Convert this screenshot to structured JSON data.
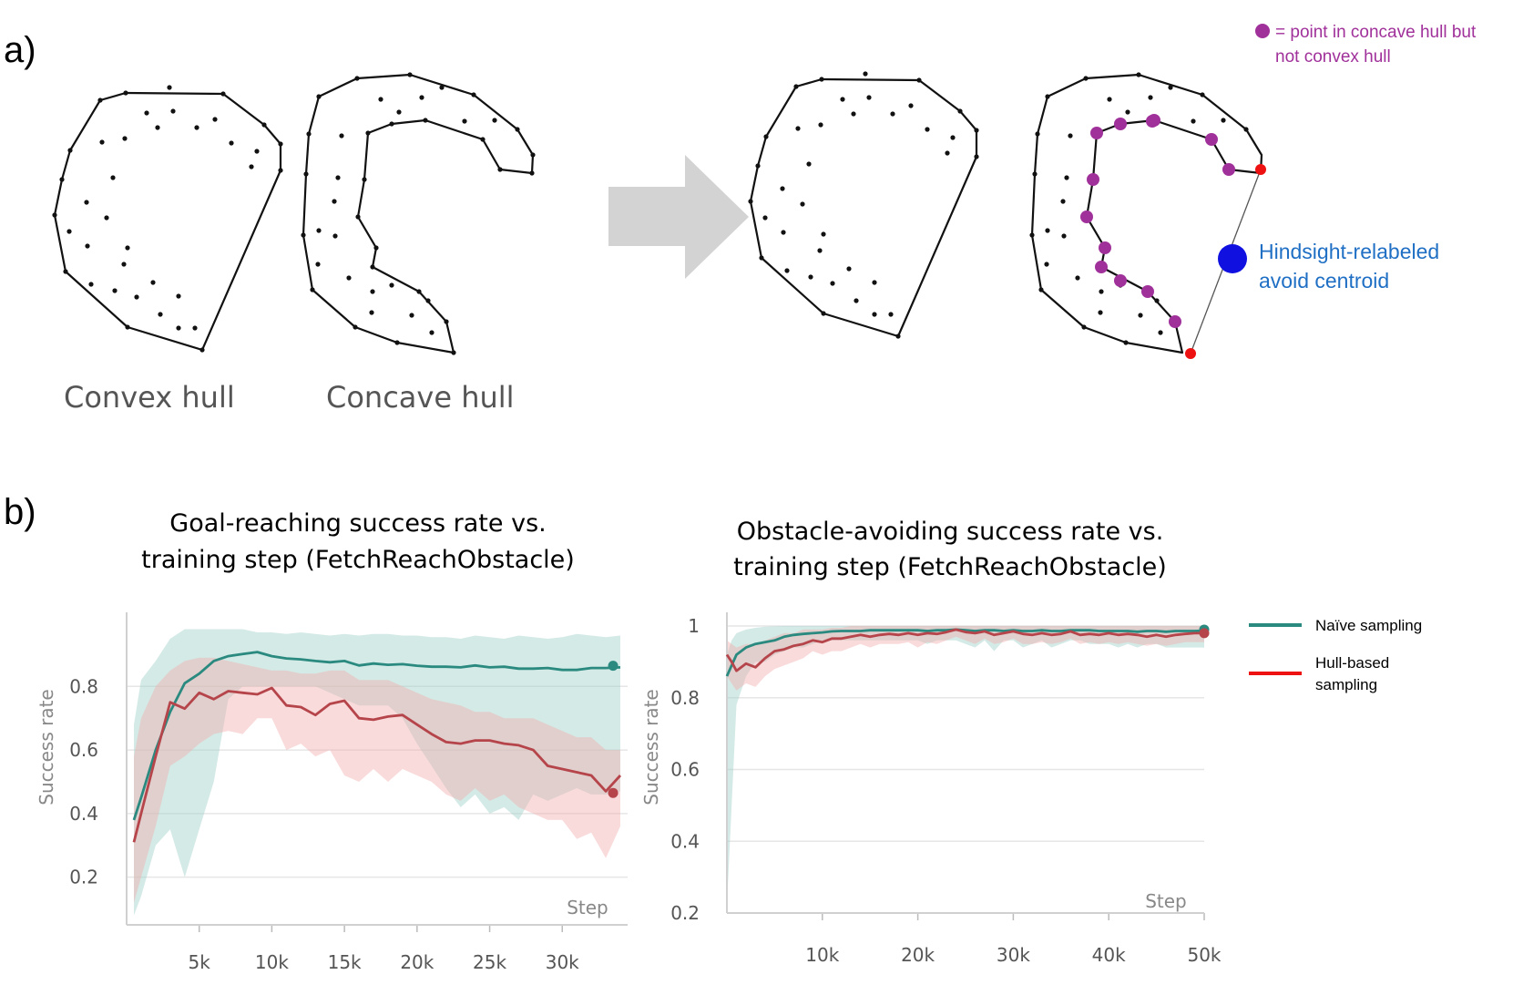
{
  "panel_a": {
    "label": "a)",
    "convex_label": "Convex hull",
    "concave_label": "Concave hull",
    "legend_text_line1": "= point in concave hull but",
    "legend_text_line2": "not convex hull",
    "centroid_line1": "Hindsight-relabeled",
    "centroid_line2": "avoid centroid",
    "colors": {
      "purple": "#a0309a",
      "red": "#ee1111",
      "blue": "#1010e0",
      "arrow": "#d3d3d3"
    }
  },
  "panel_b": {
    "label": "b)"
  },
  "legend": {
    "items": [
      {
        "label": "Naïve sampling",
        "color": "#2a8a80"
      },
      {
        "label_line1": "Hull-based",
        "label_line2": "sampling",
        "color": "#ee1111"
      }
    ]
  },
  "chart_data": [
    {
      "type": "line",
      "title_line1": "Goal-reaching success rate vs.",
      "title_line2": "training step (FetchReachObstacle)",
      "xlabel": "Step",
      "ylabel": "Success rate",
      "xlim": [
        0,
        34500
      ],
      "ylim": [
        0.05,
        0.99
      ],
      "xticks": [
        5000,
        10000,
        15000,
        20000,
        25000,
        30000
      ],
      "xtick_labels": [
        "5k",
        "10k",
        "15k",
        "20k",
        "25k",
        "30k"
      ],
      "yticks": [
        0.2,
        0.4,
        0.6,
        0.8
      ],
      "ytick_labels": [
        "0.2",
        "0.4",
        "0.6",
        "0.8"
      ],
      "grid": true,
      "x": [
        500,
        1000,
        2000,
        3000,
        4000,
        5000,
        6000,
        7000,
        8000,
        9000,
        10000,
        11000,
        12000,
        13000,
        14000,
        15000,
        16000,
        17000,
        18000,
        19000,
        20000,
        21000,
        22000,
        23000,
        24000,
        25000,
        26000,
        27000,
        28000,
        29000,
        30000,
        31000,
        32000,
        33000,
        34000
      ],
      "series": [
        {
          "name": "Naïve sampling",
          "color": "#2a8a80",
          "band_color": "#9fd0c8",
          "values": [
            0.38,
            0.45,
            0.6,
            0.72,
            0.81,
            0.84,
            0.88,
            0.895,
            0.902,
            0.908,
            0.895,
            0.888,
            0.885,
            0.88,
            0.876,
            0.88,
            0.866,
            0.872,
            0.868,
            0.87,
            0.865,
            0.862,
            0.862,
            0.86,
            0.866,
            0.86,
            0.862,
            0.856,
            0.856,
            0.858,
            0.852,
            0.852,
            0.858,
            0.858,
            0.86
          ],
          "upper": [
            0.68,
            0.82,
            0.88,
            0.95,
            0.98,
            0.98,
            0.98,
            0.98,
            0.98,
            0.97,
            0.97,
            0.965,
            0.97,
            0.965,
            0.96,
            0.965,
            0.96,
            0.965,
            0.965,
            0.96,
            0.96,
            0.955,
            0.955,
            0.95,
            0.96,
            0.955,
            0.95,
            0.96,
            0.955,
            0.95,
            0.955,
            0.965,
            0.96,
            0.955,
            0.96
          ],
          "lower": [
            0.08,
            0.14,
            0.3,
            0.35,
            0.2,
            0.35,
            0.5,
            0.76,
            0.8,
            0.8,
            0.8,
            0.8,
            0.8,
            0.8,
            0.78,
            0.76,
            0.74,
            0.74,
            0.74,
            0.7,
            0.62,
            0.55,
            0.48,
            0.42,
            0.46,
            0.4,
            0.42,
            0.38,
            0.46,
            0.44,
            0.46,
            0.48,
            0.46,
            0.46,
            0.47
          ]
        },
        {
          "name": "Hull-based sampling",
          "color": "#b5454a",
          "band_color": "#f2b0b0",
          "values": [
            0.31,
            0.4,
            0.58,
            0.75,
            0.73,
            0.78,
            0.76,
            0.785,
            0.78,
            0.775,
            0.795,
            0.74,
            0.735,
            0.71,
            0.745,
            0.755,
            0.7,
            0.695,
            0.705,
            0.71,
            0.68,
            0.65,
            0.625,
            0.62,
            0.63,
            0.63,
            0.62,
            0.615,
            0.6,
            0.55,
            0.54,
            0.53,
            0.52,
            0.47,
            0.52
          ],
          "upper": [
            0.58,
            0.7,
            0.8,
            0.85,
            0.88,
            0.89,
            0.89,
            0.88,
            0.87,
            0.86,
            0.85,
            0.85,
            0.84,
            0.84,
            0.85,
            0.85,
            0.82,
            0.82,
            0.82,
            0.8,
            0.78,
            0.76,
            0.75,
            0.74,
            0.72,
            0.72,
            0.7,
            0.7,
            0.7,
            0.68,
            0.66,
            0.64,
            0.64,
            0.6,
            0.6
          ],
          "lower": [
            0.12,
            0.2,
            0.36,
            0.55,
            0.58,
            0.62,
            0.65,
            0.66,
            0.65,
            0.7,
            0.7,
            0.6,
            0.62,
            0.58,
            0.6,
            0.52,
            0.5,
            0.54,
            0.5,
            0.54,
            0.52,
            0.5,
            0.46,
            0.44,
            0.48,
            0.44,
            0.46,
            0.42,
            0.4,
            0.38,
            0.38,
            0.32,
            0.34,
            0.26,
            0.36
          ]
        }
      ],
      "end_markers": [
        {
          "series": "Naïve sampling",
          "x": 33500,
          "y": 0.865
        },
        {
          "series": "Hull-based sampling",
          "x": 33500,
          "y": 0.465
        }
      ]
    },
    {
      "type": "line",
      "title_line1": "Obstacle-avoiding success rate vs.",
      "title_line2": "training step (FetchReachObstacle)",
      "xlabel": "Step",
      "ylabel": "Success rate",
      "xlim": [
        0,
        50000
      ],
      "ylim": [
        0.2,
        1.0
      ],
      "xticks": [
        10000,
        20000,
        30000,
        40000,
        50000
      ],
      "xtick_labels": [
        "10k",
        "20k",
        "30k",
        "40k",
        "50k"
      ],
      "yticks": [
        0.2,
        0.4,
        0.6,
        0.8,
        1.0
      ],
      "ytick_labels": [
        "0.2",
        "0.4",
        "0.6",
        "0.8",
        "1"
      ],
      "grid": true,
      "x": [
        0,
        500,
        1000,
        2000,
        3000,
        4000,
        5000,
        6000,
        7000,
        8000,
        9000,
        10000,
        11000,
        12000,
        13000,
        14000,
        15000,
        16000,
        17000,
        18000,
        19000,
        20000,
        21000,
        22000,
        23000,
        24000,
        25000,
        26000,
        27000,
        28000,
        29000,
        30000,
        31000,
        32000,
        33000,
        34000,
        35000,
        36000,
        37000,
        38000,
        39000,
        40000,
        41000,
        42000,
        43000,
        44000,
        45000,
        46000,
        47000,
        48000,
        49000,
        50000
      ],
      "series": [
        {
          "name": "Naïve sampling",
          "color": "#2a8a80",
          "band_color": "#9fd0c8",
          "values": [
            0.86,
            0.89,
            0.92,
            0.94,
            0.95,
            0.955,
            0.96,
            0.97,
            0.975,
            0.978,
            0.98,
            0.982,
            0.985,
            0.986,
            0.986,
            0.986,
            0.988,
            0.988,
            0.988,
            0.988,
            0.988,
            0.988,
            0.986,
            0.988,
            0.988,
            0.99,
            0.988,
            0.986,
            0.988,
            0.988,
            0.986,
            0.988,
            0.986,
            0.986,
            0.988,
            0.986,
            0.986,
            0.988,
            0.988,
            0.988,
            0.986,
            0.986,
            0.986,
            0.986,
            0.984,
            0.986,
            0.986,
            0.984,
            0.986,
            0.986,
            0.986,
            0.987
          ],
          "upper": [
            0.92,
            0.96,
            0.98,
            0.99,
            0.995,
            0.998,
            0.999,
            1.0,
            1.0,
            1.0,
            1.0,
            1.0,
            1.0,
            1.0,
            1.0,
            1.0,
            1.0,
            1.0,
            1.0,
            1.0,
            1.0,
            1.0,
            1.0,
            1.0,
            1.0,
            1.0,
            1.0,
            1.0,
            1.0,
            1.0,
            1.0,
            1.0,
            1.0,
            1.0,
            1.0,
            1.0,
            1.0,
            1.0,
            1.0,
            1.0,
            1.0,
            1.0,
            1.0,
            1.0,
            1.0,
            1.0,
            1.0,
            1.0,
            1.0,
            1.0,
            1.0,
            1.0
          ],
          "lower": [
            0.22,
            0.5,
            0.78,
            0.86,
            0.9,
            0.9,
            0.92,
            0.93,
            0.94,
            0.94,
            0.95,
            0.96,
            0.96,
            0.96,
            0.96,
            0.96,
            0.96,
            0.96,
            0.96,
            0.96,
            0.96,
            0.96,
            0.95,
            0.96,
            0.96,
            0.96,
            0.95,
            0.94,
            0.96,
            0.93,
            0.96,
            0.96,
            0.94,
            0.95,
            0.96,
            0.94,
            0.95,
            0.96,
            0.96,
            0.95,
            0.95,
            0.95,
            0.94,
            0.95,
            0.94,
            0.95,
            0.95,
            0.94,
            0.94,
            0.94,
            0.94,
            0.94
          ]
        },
        {
          "name": "Hull-based sampling",
          "color": "#b5454a",
          "band_color": "#f2b0b0",
          "values": [
            0.92,
            0.9,
            0.875,
            0.895,
            0.885,
            0.91,
            0.93,
            0.935,
            0.945,
            0.95,
            0.96,
            0.955,
            0.965,
            0.965,
            0.97,
            0.975,
            0.97,
            0.975,
            0.978,
            0.975,
            0.98,
            0.975,
            0.98,
            0.978,
            0.983,
            0.99,
            0.983,
            0.98,
            0.985,
            0.975,
            0.98,
            0.985,
            0.978,
            0.975,
            0.98,
            0.975,
            0.978,
            0.985,
            0.975,
            0.978,
            0.975,
            0.98,
            0.975,
            0.978,
            0.975,
            0.97,
            0.975,
            0.97,
            0.975,
            0.978,
            0.98,
            0.98
          ],
          "upper": [
            0.96,
            0.95,
            0.94,
            0.95,
            0.95,
            0.96,
            0.97,
            0.98,
            0.98,
            0.99,
            0.99,
            0.99,
            0.995,
            0.995,
            1.0,
            1.0,
            1.0,
            1.0,
            1.0,
            1.0,
            1.0,
            1.0,
            1.0,
            1.0,
            1.0,
            1.0,
            1.0,
            1.0,
            1.0,
            1.0,
            1.0,
            1.0,
            1.0,
            1.0,
            1.0,
            1.0,
            1.0,
            1.0,
            1.0,
            1.0,
            1.0,
            1.0,
            1.0,
            1.0,
            1.0,
            1.0,
            1.0,
            1.0,
            1.0,
            1.0,
            1.0,
            1.0
          ],
          "lower": [
            0.86,
            0.84,
            0.82,
            0.84,
            0.83,
            0.86,
            0.88,
            0.89,
            0.9,
            0.91,
            0.93,
            0.92,
            0.93,
            0.93,
            0.94,
            0.95,
            0.94,
            0.95,
            0.95,
            0.95,
            0.955,
            0.94,
            0.955,
            0.95,
            0.96,
            0.97,
            0.96,
            0.95,
            0.965,
            0.95,
            0.955,
            0.965,
            0.95,
            0.95,
            0.955,
            0.95,
            0.955,
            0.965,
            0.95,
            0.955,
            0.95,
            0.955,
            0.95,
            0.955,
            0.95,
            0.945,
            0.95,
            0.945,
            0.95,
            0.955,
            0.955,
            0.955
          ]
        }
      ],
      "end_markers": [
        {
          "series": "Naïve sampling",
          "x": 50000,
          "y": 0.99
        },
        {
          "series": "Hull-based sampling",
          "x": 50000,
          "y": 0.98
        }
      ]
    }
  ]
}
